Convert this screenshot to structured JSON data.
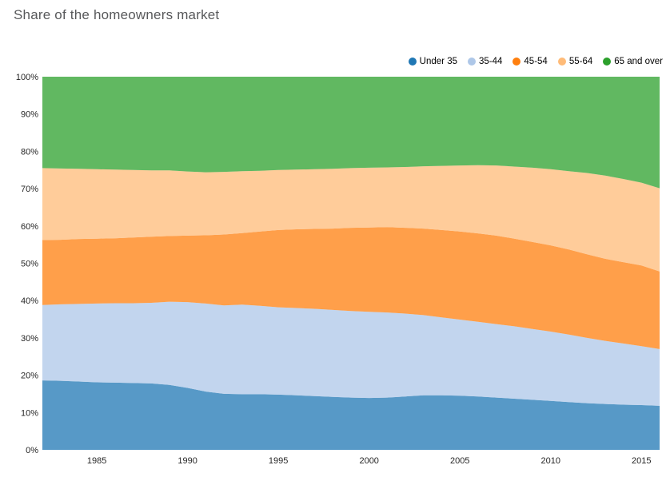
{
  "title": "Share of the homeowners market",
  "colors": {
    "title_text": "#58595b",
    "axis_text": "#262626",
    "background": "#ffffff"
  },
  "chart_data": {
    "type": "area",
    "stacked": true,
    "normalized_percent": true,
    "title": "Share of the homeowners market",
    "xlabel": "",
    "ylabel": "",
    "grid": false,
    "legend_position": "top-right",
    "fill_opacity": 0.75,
    "xlim": [
      1982,
      2016
    ],
    "ylim": [
      0,
      100
    ],
    "x_ticks": [
      1985,
      1990,
      1995,
      2000,
      2005,
      2010,
      2015
    ],
    "y_ticks": [
      "0%",
      "10%",
      "20%",
      "30%",
      "40%",
      "50%",
      "60%",
      "70%",
      "80%",
      "90%",
      "100%"
    ],
    "x": [
      1982,
      1983,
      1984,
      1985,
      1986,
      1987,
      1988,
      1989,
      1990,
      1991,
      1992,
      1993,
      1994,
      1995,
      1996,
      1997,
      1998,
      1999,
      2000,
      2001,
      2002,
      2003,
      2004,
      2005,
      2006,
      2007,
      2008,
      2009,
      2010,
      2011,
      2012,
      2013,
      2014,
      2015,
      2016
    ],
    "series": [
      {
        "name": "Under 35",
        "color": "#1f77b4",
        "values": [
          18.6,
          18.5,
          18.3,
          18.1,
          18.0,
          17.9,
          17.8,
          17.4,
          16.6,
          15.6,
          15.0,
          14.9,
          14.9,
          14.8,
          14.6,
          14.4,
          14.2,
          14.0,
          13.9,
          14.0,
          14.3,
          14.6,
          14.6,
          14.5,
          14.3,
          14.0,
          13.7,
          13.4,
          13.1,
          12.8,
          12.5,
          12.3,
          12.1,
          12.0,
          11.8
        ]
      },
      {
        "name": "35-44",
        "color": "#aec7e8",
        "values": [
          20.2,
          20.5,
          20.8,
          21.1,
          21.3,
          21.4,
          21.6,
          22.3,
          23.0,
          23.6,
          23.7,
          24.0,
          23.7,
          23.4,
          23.4,
          23.4,
          23.3,
          23.2,
          23.1,
          22.8,
          22.2,
          21.5,
          20.9,
          20.4,
          20.0,
          19.7,
          19.4,
          19.0,
          18.6,
          18.1,
          17.5,
          16.9,
          16.4,
          15.8,
          15.2
        ]
      },
      {
        "name": "45-54",
        "color": "#ff7f0e",
        "values": [
          17.4,
          17.3,
          17.4,
          17.4,
          17.4,
          17.6,
          17.7,
          17.6,
          17.8,
          18.3,
          19.0,
          19.2,
          19.9,
          20.7,
          21.1,
          21.4,
          21.8,
          22.3,
          22.6,
          22.9,
          23.0,
          23.2,
          23.4,
          23.6,
          23.7,
          23.7,
          23.5,
          23.3,
          23.1,
          22.8,
          22.4,
          22.0,
          21.8,
          21.6,
          20.8
        ]
      },
      {
        "name": "55-64",
        "color": "#ffbb78",
        "values": [
          19.3,
          19.1,
          18.8,
          18.6,
          18.4,
          18.1,
          17.8,
          17.6,
          17.2,
          16.9,
          16.8,
          16.6,
          16.3,
          16.1,
          16.0,
          16.0,
          16.0,
          16.0,
          16.0,
          16.0,
          16.3,
          16.7,
          17.2,
          17.7,
          18.3,
          18.8,
          19.3,
          19.9,
          20.4,
          21.0,
          21.8,
          22.3,
          22.3,
          22.2,
          22.3
        ]
      },
      {
        "name": "65 and over",
        "color": "#2ca02c",
        "values": [
          24.5,
          24.6,
          24.7,
          24.8,
          24.9,
          25.0,
          25.1,
          25.1,
          25.4,
          25.6,
          25.5,
          25.3,
          25.2,
          25.0,
          24.9,
          24.8,
          24.7,
          24.5,
          24.4,
          24.3,
          24.2,
          24.0,
          23.9,
          23.8,
          23.7,
          23.8,
          24.1,
          24.4,
          24.8,
          25.3,
          25.8,
          26.5,
          27.4,
          28.4,
          29.9
        ]
      }
    ]
  }
}
